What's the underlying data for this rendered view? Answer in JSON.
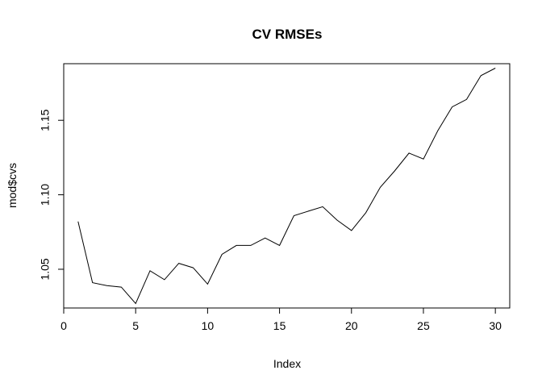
{
  "chart_data": {
    "type": "line",
    "title": "CV RMSEs",
    "xlabel": "Index",
    "ylabel": "mod$cvs",
    "xlim": [
      0,
      31
    ],
    "ylim": [
      1.024,
      1.188
    ],
    "x_ticks": [
      0,
      5,
      10,
      15,
      20,
      25,
      30
    ],
    "x_tick_labels": [
      "0",
      "5",
      "10",
      "15",
      "20",
      "25",
      "30"
    ],
    "y_ticks": [
      1.05,
      1.1,
      1.15
    ],
    "y_tick_labels": [
      "1.05",
      "1.10",
      "1.15"
    ],
    "grid": false,
    "series": [
      {
        "x": [
          1,
          2,
          3,
          4,
          5,
          6,
          7,
          8,
          9,
          10,
          11,
          12,
          13,
          14,
          15,
          16,
          17,
          18,
          19,
          20,
          21,
          22,
          23,
          24,
          25,
          26,
          27,
          28,
          29,
          30
        ],
        "values": [
          1.082,
          1.041,
          1.039,
          1.038,
          1.027,
          1.049,
          1.043,
          1.054,
          1.051,
          1.04,
          1.06,
          1.066,
          1.066,
          1.071,
          1.066,
          1.086,
          1.089,
          1.092,
          1.083,
          1.076,
          1.088,
          1.105,
          1.116,
          1.128,
          1.124,
          1.143,
          1.159,
          1.164,
          1.18,
          1.185
        ]
      }
    ]
  }
}
